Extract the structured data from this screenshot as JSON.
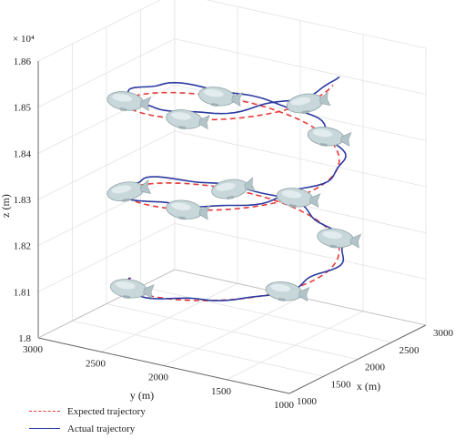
{
  "chart_data": {
    "type": "line",
    "dimensions": 3,
    "xlabel": "x (m)",
    "ylabel": "y (m)",
    "zlabel": "z (m)",
    "z_exponent_label": "× 10⁴",
    "xlim": [
      1000,
      3000
    ],
    "ylim": [
      1000,
      3000
    ],
    "zlim": [
      1.8,
      1.86
    ],
    "x_ticks": [
      "1000",
      "1500",
      "2000",
      "2500",
      "3000"
    ],
    "y_ticks": [
      "1000",
      "1500",
      "2000",
      "2500",
      "3000"
    ],
    "z_ticks": [
      "1.8",
      "1.81",
      "1.82",
      "1.83",
      "1.84",
      "1.85",
      "1.86"
    ],
    "grid": true,
    "legend_position": "bottom-left",
    "series": [
      {
        "name": "Expected trajectory",
        "color": "#e83a3a",
        "style": "dashed",
        "turns": 2.5,
        "center": [
          2000,
          2000
        ],
        "radius": 750,
        "z_range": [
          1.808,
          1.857
        ]
      },
      {
        "name": "Actual trajectory",
        "color": "#2b3aa0",
        "style": "solid",
        "turns": 2.5,
        "center": [
          2000,
          2000
        ],
        "radius": 770,
        "z_range": [
          1.808,
          1.859
        ]
      }
    ],
    "markers": "airship-icon"
  }
}
